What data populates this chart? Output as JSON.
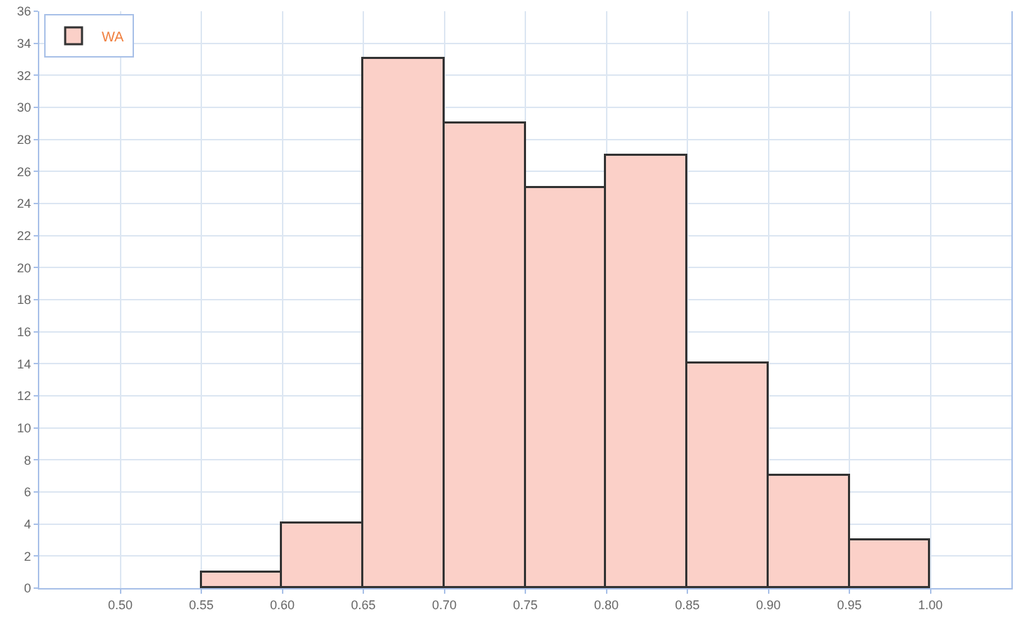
{
  "chart_data": {
    "type": "histogram",
    "bins": [
      0.55,
      0.6,
      0.65,
      0.7,
      0.75,
      0.8,
      0.85,
      0.9,
      0.95,
      1.0
    ],
    "series": [
      {
        "name": "WA",
        "color": "#fbd0c8",
        "values": [
          1,
          4,
          33,
          29,
          25,
          27,
          14,
          7,
          3
        ]
      }
    ],
    "xlim": [
      0.45,
      1.05
    ],
    "xticks": [
      {
        "value": 0.5,
        "label": "0.50"
      },
      {
        "value": 0.55,
        "label": "0.55"
      },
      {
        "value": 0.6,
        "label": "0.60"
      },
      {
        "value": 0.65,
        "label": "0.65"
      },
      {
        "value": 0.7,
        "label": "0.70"
      },
      {
        "value": 0.75,
        "label": "0.75"
      },
      {
        "value": 0.8,
        "label": "0.80"
      },
      {
        "value": 0.85,
        "label": "0.85"
      },
      {
        "value": 0.9,
        "label": "0.90"
      },
      {
        "value": 0.95,
        "label": "0.95"
      },
      {
        "value": 1.0,
        "label": "1.00"
      }
    ],
    "ylim": [
      0,
      36
    ],
    "yticks": [
      0,
      2,
      4,
      6,
      8,
      10,
      12,
      14,
      16,
      18,
      20,
      22,
      24,
      26,
      28,
      30,
      32,
      34,
      36
    ],
    "grid": true,
    "legend": "top left"
  }
}
